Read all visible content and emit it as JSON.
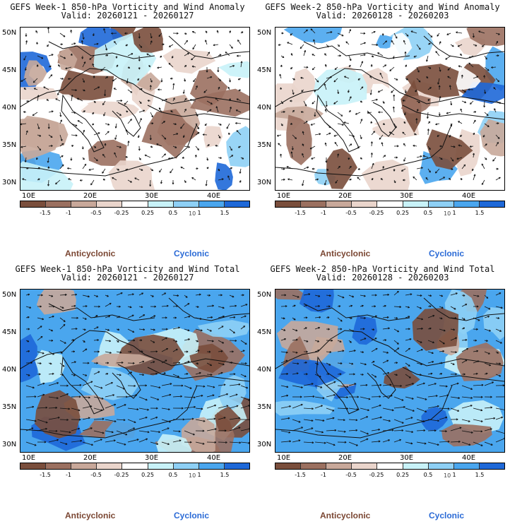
{
  "colors": {
    "brown_dark": "#7a4e3c",
    "brown_mid": "#9b7060",
    "brown_light": "#c8a89a",
    "brown_pale": "#ead5cc",
    "white": "#ffffff",
    "cyan_pale": "#c8f2f8",
    "blue_light": "#8ed0f5",
    "blue_mid": "#4aa6ee",
    "blue_dark": "#1e68d8",
    "anticyclonic_text": "#7a4632",
    "cyclonic_text": "#2a6ad6"
  },
  "colorbar": {
    "ticks": [
      "-1.5",
      "-1",
      "-0.5",
      "-0.25",
      "0.25",
      "0.5",
      "1",
      "1.5"
    ],
    "scale_label": "10"
  },
  "axes": {
    "lat_labels": [
      "50N",
      "45N",
      "40N",
      "35N",
      "30N"
    ],
    "lon_labels": [
      "10E",
      "20E",
      "30E",
      "40E"
    ]
  },
  "legend": {
    "anticyclonic": "Anticyclonic",
    "cyclonic": "Cyclonic"
  },
  "panels": [
    {
      "title": "GEFS Week-1 850-hPa Vorticity and Wind Anomaly",
      "valid": "Valid: 20260121 - 20260127",
      "field": "anomaly"
    },
    {
      "title": "GEFS Week-2 850-hPa Vorticity and Wind Anomaly",
      "valid": "Valid: 20260128 - 20260203",
      "field": "anomaly"
    },
    {
      "title": "GEFS Week-1 850-hPa Vorticity and Wind Total",
      "valid": "Valid: 20260121 - 20260127",
      "field": "total"
    },
    {
      "title": "GEFS Week-2 850-hPa Vorticity and Wind Total",
      "valid": "Valid: 20260128 - 20260203",
      "field": "total"
    }
  ]
}
